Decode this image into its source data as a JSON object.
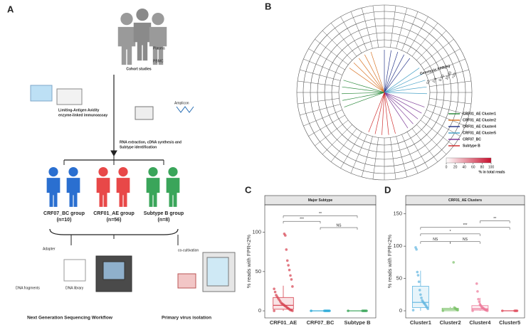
{
  "panels": {
    "labels": [
      "A",
      "B",
      "C",
      "D"
    ],
    "workflow": {
      "cohort": "Cohort studies",
      "tubes": [
        "Plasma",
        "PBMC"
      ],
      "assay": [
        "Limiting-Antigen Avidity",
        "enzyme-linked immunoassay"
      ],
      "rna": [
        "RNA extraction, cDNA synthesis and",
        "Subtype identification"
      ],
      "amplicon": "Amplicon",
      "groups": [
        {
          "name": "CRF07_BC group",
          "n": "(n=10)"
        },
        {
          "name": "CRF01_AE group",
          "n": "(n=56)"
        },
        {
          "name": "Subtype B group",
          "n": "(n=8)"
        }
      ],
      "ngs_labels": [
        "Adapter",
        "DNA fragments",
        "DNA library"
      ],
      "ngs": "Next Generation Sequencing Workflow",
      "coculture": "co-cultivation",
      "virus": "Primary virus isolation"
    },
    "heatmap": {
      "ring_title": "Genotypic FPR(%)",
      "rings": [
        "≤2",
        "2-5",
        "5-10",
        "10-20",
        ">20"
      ],
      "legend": [
        {
          "name": "CRF01_AE Cluster1",
          "color": "#2e8b3e"
        },
        {
          "name": "CRF01_AE Cluster2",
          "color": "#d9772b"
        },
        {
          "name": "CRF01_AE Cluster4",
          "color": "#2b3a8c"
        },
        {
          "name": "CRF01_AE Cluster5",
          "color": "#4aa3c8"
        },
        {
          "name": "CRF07_BC",
          "color": "#7d3c98"
        },
        {
          "name": "Subtype B",
          "color": "#d03030"
        }
      ],
      "colorbar_ticks": [
        0,
        20,
        40,
        60,
        80,
        100
      ],
      "colorbar_label": "% in total reads"
    }
  },
  "chart_data": [
    {
      "type": "box",
      "title": "Major Subtype",
      "ylabel": "% reads with FPR<2%",
      "categories": [
        "CRF01_AE",
        "CRF07_BC",
        "Subtype B"
      ],
      "ylim": [
        -9,
        135
      ],
      "yticks": [
        0,
        50,
        100
      ],
      "boxes": [
        {
          "color": "#d6404e",
          "whisker_low": 0,
          "q1": 2,
          "median": 7,
          "q3": 17,
          "whisker_high": 32,
          "points": [
            0,
            0,
            1,
            1,
            2,
            3,
            4,
            5,
            6,
            7,
            8,
            9,
            10,
            12,
            14,
            16,
            18,
            20,
            24,
            28,
            31,
            40,
            45,
            52,
            58,
            64,
            78,
            96,
            98
          ]
        },
        {
          "color": "#2aa9d8",
          "whisker_low": 0,
          "q1": 0,
          "median": 0,
          "q3": 0,
          "whisker_high": 0,
          "points": [
            0,
            0,
            0,
            0,
            0,
            0,
            0
          ]
        },
        {
          "color": "#3aa55a",
          "whisker_low": 0,
          "q1": 0,
          "median": 0,
          "q3": 0,
          "whisker_high": 0,
          "points": [
            0,
            0,
            0,
            0,
            0,
            0
          ]
        }
      ],
      "comparisons": [
        {
          "pair": [
            "CRF01_AE",
            "Subtype B"
          ],
          "y": 121,
          "label": "**"
        },
        {
          "pair": [
            "CRF01_AE",
            "CRF07_BC"
          ],
          "y": 114,
          "label": "***"
        },
        {
          "pair": [
            "CRF07_BC",
            "Subtype B"
          ],
          "y": 106,
          "label": "NS"
        }
      ]
    },
    {
      "type": "box",
      "title": "CRF01_AE Clusters",
      "ylabel": "% reads with FPR<2%",
      "categories": [
        "Cluster1",
        "Cluster2",
        "Cluster4",
        "Cluster5"
      ],
      "ylim": [
        -11,
        164
      ],
      "yticks": [
        0,
        50,
        100,
        150
      ],
      "boxes": [
        {
          "color": "#5fb5e0",
          "whisker_low": 0,
          "q1": 5,
          "median": 13,
          "q3": 38,
          "whisker_high": 62,
          "points": [
            1,
            3,
            5,
            7,
            9,
            11,
            12,
            14,
            16,
            20,
            25,
            32,
            45,
            55,
            60,
            95,
            98
          ]
        },
        {
          "color": "#7cc26a",
          "whisker_low": 0,
          "q1": 0,
          "median": 2,
          "q3": 4,
          "whisker_high": 6,
          "points": [
            0,
            1,
            2,
            3,
            4,
            5,
            75
          ]
        },
        {
          "color": "#ec7898",
          "whisker_low": 0,
          "q1": 1,
          "median": 3,
          "q3": 8,
          "whisker_high": 20,
          "points": [
            0,
            0,
            1,
            1,
            2,
            3,
            4,
            5,
            6,
            8,
            10,
            14,
            18,
            30,
            42
          ]
        },
        {
          "color": "#e05060",
          "whisker_low": 0,
          "q1": 0,
          "median": 0,
          "q3": 0,
          "whisker_high": 0,
          "points": [
            0,
            0,
            0,
            0,
            0
          ]
        }
      ],
      "comparisons": [
        {
          "pair": [
            "Cluster4",
            "Cluster5"
          ],
          "y": 139,
          "label": "**"
        },
        {
          "pair": [
            "Cluster1",
            "Cluster5"
          ],
          "y": 129,
          "label": "***"
        },
        {
          "pair": [
            "Cluster1",
            "Cluster4"
          ],
          "y": 119,
          "label": "*"
        },
        {
          "pair": [
            "Cluster1",
            "Cluster2"
          ],
          "y": 107,
          "label": "NS"
        },
        {
          "pair": [
            "Cluster2",
            "Cluster4"
          ],
          "y": 107,
          "label": "NS"
        }
      ]
    }
  ]
}
